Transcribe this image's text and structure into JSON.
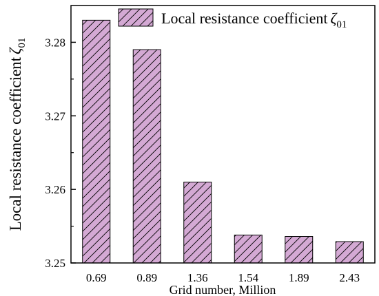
{
  "chart_data": {
    "type": "bar",
    "categories": [
      "0.69",
      "0.89",
      "1.36",
      "1.54",
      "1.89",
      "2.43"
    ],
    "series": [
      {
        "name": "Local resistance coefficient ζ01",
        "values": [
          3.283,
          3.279,
          3.261,
          3.2538,
          3.2536,
          3.2529
        ]
      }
    ],
    "xlabel": "Grid number, Million",
    "ylabel": "Local resistance coefficient ζ01",
    "ylim": [
      3.25,
      3.285
    ],
    "yticks": [
      "3.25",
      "3.26",
      "3.27",
      "3.28"
    ],
    "grid": false,
    "legend_position": "top-right",
    "bar_fill": "#d4a9d4",
    "bar_hatch": "diagonal",
    "bar_edge": "#000000"
  }
}
